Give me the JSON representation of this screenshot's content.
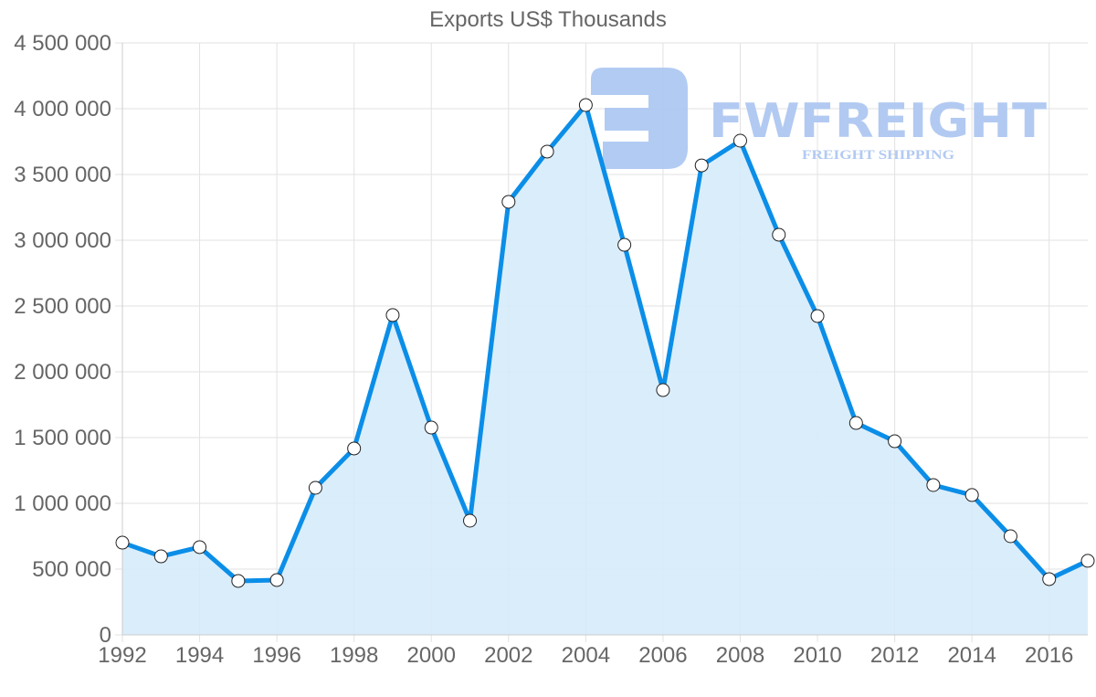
{
  "chart_data": {
    "type": "area",
    "title": "Exports US$ Thousands",
    "xlabel": "",
    "ylabel": "",
    "x": [
      1992,
      1993,
      1994,
      1995,
      1996,
      1997,
      1998,
      1999,
      2000,
      2001,
      2002,
      2003,
      2004,
      2005,
      2006,
      2007,
      2008,
      2009,
      2010,
      2011,
      2012,
      2013,
      2014,
      2015,
      2016,
      2017
    ],
    "series": [
      {
        "name": "Exports US$ Thousands",
        "values": [
          701000,
          597000,
          667000,
          410000,
          417000,
          1118000,
          1417000,
          2431000,
          1576000,
          868000,
          3292000,
          3674000,
          4028000,
          2965000,
          1861000,
          3569000,
          3757000,
          3042000,
          2424000,
          1611000,
          1472000,
          1139000,
          1063000,
          750000,
          424000,
          563000
        ],
        "line_color": "#0b8ee8",
        "fill_color": "#d6ebfb",
        "point_fill": "#ffffff",
        "point_stroke": "#222222"
      }
    ],
    "ylim": [
      0,
      4500000
    ],
    "yticks": [
      0,
      500000,
      1000000,
      1500000,
      2000000,
      2500000,
      3000000,
      3500000,
      4000000,
      4500000
    ],
    "ytick_labels": [
      "0",
      "500 000",
      "1 000 000",
      "1 500 000",
      "2 000 000",
      "2 500 000",
      "3 000 000",
      "3 500 000",
      "4 000 000",
      "4 500 000"
    ],
    "xtick_labels": [
      "1992",
      "1994",
      "1996",
      "1998",
      "2000",
      "2002",
      "2004",
      "2006",
      "2008",
      "2010",
      "2012",
      "2014",
      "2016"
    ],
    "grid": true,
    "legend": "none"
  },
  "watermark": {
    "brand": "FWFREIGHT",
    "tagline": "FREIGHT SHIPPING",
    "color": "#aec8f2"
  }
}
